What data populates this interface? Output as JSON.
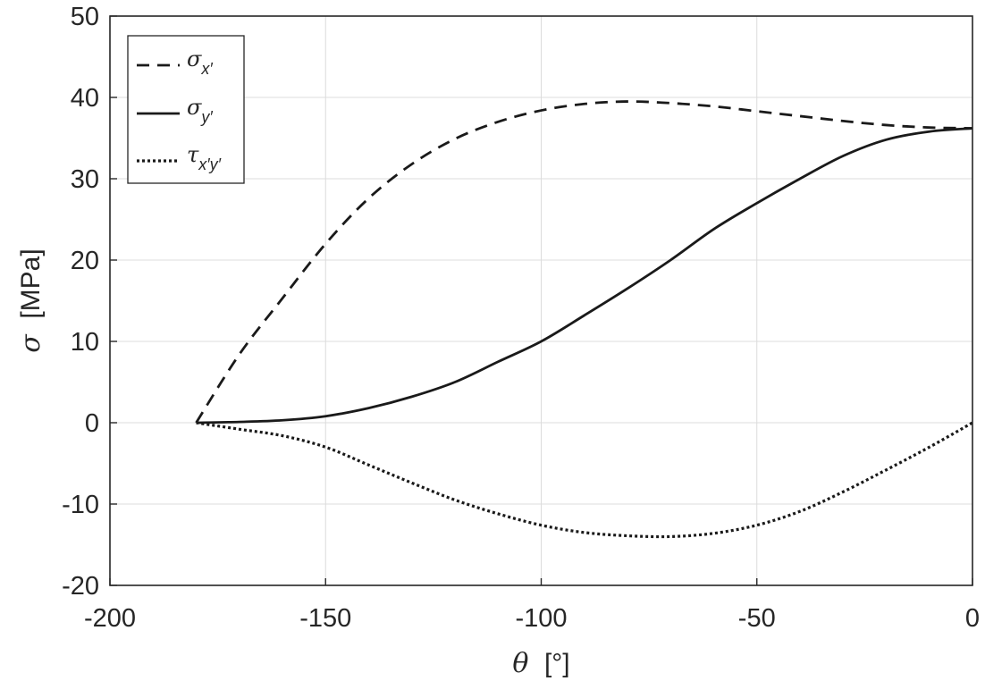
{
  "chart_data": {
    "type": "line",
    "xlabel_symbol": "θ",
    "xlabel_unit": "[°]",
    "ylabel_symbol": "σ",
    "ylabel_unit": "[MPa]",
    "xlim": [
      -200,
      0
    ],
    "ylim": [
      -20,
      50
    ],
    "xticks": [
      -200,
      -150,
      -100,
      -50,
      0
    ],
    "xtick_labels": [
      "-200",
      "-150",
      "-100",
      "-50",
      "0"
    ],
    "yticks": [
      -20,
      -10,
      0,
      10,
      20,
      30,
      40,
      50
    ],
    "ytick_labels": [
      "-20",
      "-10",
      "0",
      "10",
      "20",
      "30",
      "40",
      "50"
    ],
    "grid": true,
    "legend_position": "top-left",
    "x": [
      -180,
      -170,
      -160,
      -150,
      -140,
      -130,
      -120,
      -110,
      -100,
      -90,
      -80,
      -70,
      -60,
      -50,
      -40,
      -30,
      -20,
      -10,
      0
    ],
    "series": [
      {
        "name": "σx′",
        "symbol": "σ",
        "subscript": "x′",
        "style": "dashed",
        "values": [
          0,
          8.4,
          15.3,
          22.0,
          27.6,
          31.8,
          34.9,
          37.0,
          38.4,
          39.2,
          39.5,
          39.3,
          38.9,
          38.3,
          37.7,
          37.1,
          36.6,
          36.3,
          36.2
        ]
      },
      {
        "name": "σy′",
        "symbol": "σ",
        "subscript": "y′",
        "style": "solid",
        "values": [
          0,
          0.1,
          0.3,
          0.8,
          1.8,
          3.2,
          5.0,
          7.5,
          10.0,
          13.2,
          16.5,
          20.0,
          23.8,
          27.0,
          30.0,
          32.8,
          34.8,
          35.8,
          36.2
        ]
      },
      {
        "name": "τx′y′",
        "symbol": "τ",
        "subscript": "x′y′",
        "style": "dotted",
        "values": [
          0,
          -0.8,
          -1.6,
          -3.0,
          -5.2,
          -7.4,
          -9.5,
          -11.2,
          -12.6,
          -13.5,
          -13.9,
          -14.0,
          -13.6,
          -12.6,
          -10.9,
          -8.5,
          -5.8,
          -3.0,
          0
        ]
      }
    ]
  }
}
